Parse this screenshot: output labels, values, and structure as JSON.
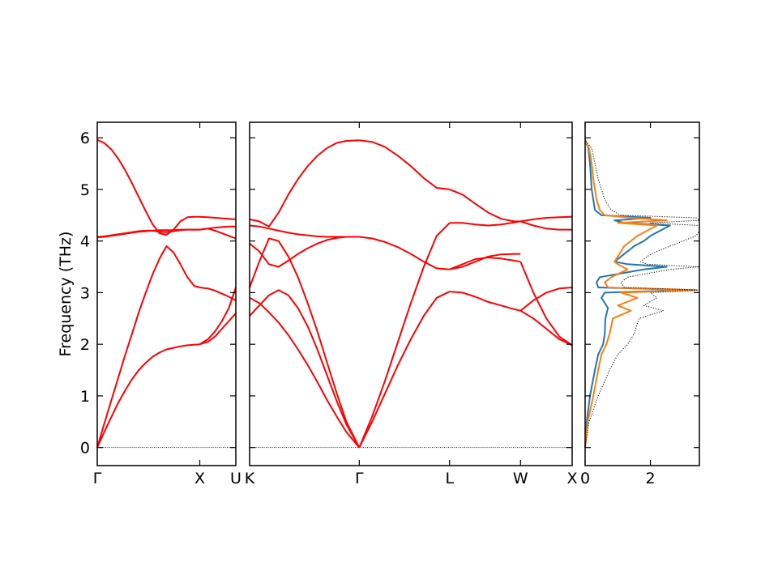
{
  "chart_data": [
    {
      "type": "line",
      "panel": "band-structure-left",
      "ylabel": "Frequency (THz)",
      "yticks": [
        0,
        1,
        2,
        3,
        4,
        5,
        6
      ],
      "ylim": [
        -0.35,
        6.3
      ],
      "xlim": [
        0,
        1
      ],
      "xticks": [
        {
          "value": 0,
          "label": "Γ"
        },
        {
          "value": 0.74,
          "label": "X"
        },
        {
          "value": 1.0,
          "label": "U"
        }
      ],
      "series_color": "#ff0000",
      "zero_line_color": "#00008b",
      "series": [
        {
          "x": [
            0,
            0.05,
            0.1,
            0.15,
            0.2,
            0.25,
            0.3,
            0.35,
            0.4,
            0.45,
            0.5,
            0.55,
            0.6,
            0.65,
            0.7,
            0.74
          ],
          "values": [
            0,
            0.3,
            0.58,
            0.86,
            1.1,
            1.32,
            1.5,
            1.64,
            1.76,
            1.84,
            1.9,
            1.93,
            1.96,
            1.98,
            1.99,
            2.0
          ]
        },
        {
          "x": [
            0,
            0.05,
            0.1,
            0.15,
            0.2,
            0.25,
            0.3,
            0.35,
            0.4,
            0.45,
            0.5,
            0.55,
            0.6,
            0.65,
            0.7,
            0.74
          ],
          "values": [
            0,
            0.46,
            0.9,
            1.34,
            1.78,
            2.2,
            2.62,
            3.0,
            3.36,
            3.66,
            3.9,
            3.78,
            3.55,
            3.3,
            3.13,
            3.1
          ]
        },
        {
          "x": [
            0,
            0.05,
            0.1,
            0.15,
            0.2,
            0.25,
            0.3,
            0.35,
            0.4,
            0.45,
            0.5,
            0.55,
            0.6,
            0.65,
            0.7,
            0.74
          ],
          "values": [
            4.07,
            4.08,
            4.1,
            4.12,
            4.14,
            4.16,
            4.18,
            4.19,
            4.2,
            4.21,
            4.21,
            4.21,
            4.22,
            4.22,
            4.22,
            4.22
          ]
        },
        {
          "x": [
            0,
            0.05,
            0.1,
            0.15,
            0.2,
            0.25,
            0.3,
            0.35,
            0.4,
            0.45,
            0.5,
            0.55,
            0.6,
            0.65,
            0.7,
            0.74
          ],
          "values": [
            5.96,
            5.9,
            5.78,
            5.6,
            5.38,
            5.12,
            4.85,
            4.58,
            4.32,
            4.15,
            4.12,
            4.22,
            4.38,
            4.46,
            4.47,
            4.47
          ]
        },
        {
          "x": [
            0,
            0.05,
            0.1,
            0.15,
            0.2,
            0.25,
            0.3,
            0.35,
            0.4,
            0.45,
            0.5,
            0.55,
            0.6,
            0.65,
            0.7,
            0.74
          ],
          "values": [
            4.08,
            4.09,
            4.11,
            4.13,
            4.15,
            4.17,
            4.19,
            4.2,
            4.2,
            4.18,
            4.17,
            4.19,
            4.21,
            4.22,
            4.22,
            4.22
          ]
        },
        {
          "x": [
            0.74,
            0.8,
            0.85,
            0.9,
            0.95,
            1.0
          ],
          "values": [
            2.0,
            2.1,
            2.25,
            2.45,
            2.7,
            3.1
          ]
        },
        {
          "x": [
            0.74,
            0.8,
            0.85,
            0.9,
            0.95,
            1.0
          ],
          "values": [
            2.0,
            2.05,
            2.15,
            2.3,
            2.45,
            2.6
          ]
        },
        {
          "x": [
            0.74,
            0.8,
            0.85,
            0.9,
            0.95,
            1.0
          ],
          "values": [
            3.1,
            3.08,
            3.04,
            2.98,
            2.92,
            2.85
          ]
        },
        {
          "x": [
            0.74,
            0.8,
            0.85,
            0.9,
            0.95,
            1.0
          ],
          "values": [
            4.22,
            4.24,
            4.2,
            4.15,
            4.1,
            4.05
          ]
        },
        {
          "x": [
            0.74,
            0.8,
            0.85,
            0.9,
            0.95,
            1.0
          ],
          "values": [
            4.47,
            4.46,
            4.45,
            4.44,
            4.43,
            4.42
          ]
        },
        {
          "x": [
            0.74,
            0.8,
            0.85,
            0.9,
            0.95,
            1.0
          ],
          "values": [
            4.22,
            4.24,
            4.26,
            4.27,
            4.28,
            4.28
          ]
        }
      ]
    },
    {
      "type": "line",
      "panel": "band-structure-right",
      "ylim": [
        -0.35,
        6.3
      ],
      "xlim": [
        0,
        1
      ],
      "xticks": [
        {
          "value": 0,
          "label": "K"
        },
        {
          "value": 0.34,
          "label": "Γ"
        },
        {
          "value": 0.62,
          "label": "L"
        },
        {
          "value": 0.84,
          "label": "W"
        },
        {
          "value": 1.0,
          "label": "X"
        }
      ],
      "series_color": "#ff0000",
      "zero_line_color": "#00008b",
      "series": [
        {
          "x": [
            0,
            0.03,
            0.06,
            0.09,
            0.12,
            0.15,
            0.18,
            0.21,
            0.24,
            0.27,
            0.3,
            0.34
          ],
          "values": [
            2.55,
            2.75,
            2.95,
            3.05,
            2.95,
            2.7,
            2.35,
            1.9,
            1.4,
            0.9,
            0.45,
            0
          ]
        },
        {
          "x": [
            0,
            0.03,
            0.06,
            0.09,
            0.12,
            0.15,
            0.18,
            0.21,
            0.24,
            0.27,
            0.3,
            0.34
          ],
          "values": [
            2.9,
            2.8,
            2.62,
            2.42,
            2.18,
            1.9,
            1.6,
            1.27,
            0.92,
            0.6,
            0.3,
            0
          ]
        },
        {
          "x": [
            0,
            0.03,
            0.06,
            0.09,
            0.12,
            0.15,
            0.18,
            0.21,
            0.24,
            0.27,
            0.3,
            0.34
          ],
          "values": [
            3.1,
            3.6,
            4.05,
            4.0,
            3.7,
            3.3,
            2.8,
            2.25,
            1.65,
            1.05,
            0.5,
            0
          ]
        },
        {
          "x": [
            0,
            0.03,
            0.06,
            0.09,
            0.12,
            0.15,
            0.18,
            0.21,
            0.24,
            0.27,
            0.3,
            0.34
          ],
          "values": [
            3.95,
            3.8,
            3.55,
            3.5,
            3.62,
            3.75,
            3.86,
            3.95,
            4.02,
            4.06,
            4.08,
            4.08
          ]
        },
        {
          "x": [
            0,
            0.03,
            0.06,
            0.09,
            0.12,
            0.15,
            0.18,
            0.21,
            0.24,
            0.27,
            0.3,
            0.34
          ],
          "values": [
            4.3,
            4.28,
            4.24,
            4.2,
            4.16,
            4.13,
            4.11,
            4.09,
            4.08,
            4.08,
            4.08,
            4.08
          ]
        },
        {
          "x": [
            0,
            0.03,
            0.06,
            0.09,
            0.12,
            0.15,
            0.18,
            0.21,
            0.24,
            0.27,
            0.3,
            0.34
          ],
          "values": [
            4.42,
            4.38,
            4.28,
            4.55,
            4.9,
            5.2,
            5.45,
            5.65,
            5.8,
            5.9,
            5.94,
            5.95
          ]
        },
        {
          "x": [
            0.34,
            0.38,
            0.42,
            0.46,
            0.5,
            0.54,
            0.58,
            0.62
          ],
          "values": [
            0,
            0.5,
            1.05,
            1.6,
            2.1,
            2.55,
            2.9,
            3.02
          ]
        },
        {
          "x": [
            0.34,
            0.38,
            0.42,
            0.46,
            0.5,
            0.54,
            0.58,
            0.62
          ],
          "values": [
            0,
            0.6,
            1.3,
            2.05,
            2.8,
            3.5,
            4.1,
            4.35
          ]
        },
        {
          "x": [
            0.34,
            0.38,
            0.42,
            0.46,
            0.5,
            0.54,
            0.58,
            0.62
          ],
          "values": [
            4.08,
            4.05,
            3.98,
            3.88,
            3.75,
            3.6,
            3.47,
            3.45
          ]
        },
        {
          "x": [
            0.34,
            0.38,
            0.42,
            0.46,
            0.5,
            0.54,
            0.58,
            0.62
          ],
          "values": [
            5.95,
            5.92,
            5.82,
            5.65,
            5.45,
            5.22,
            5.03,
            5.0
          ]
        },
        {
          "x": [
            0.62,
            0.66,
            0.7,
            0.74,
            0.78,
            0.82,
            0.84
          ],
          "values": [
            3.02,
            3.0,
            2.92,
            2.82,
            2.75,
            2.68,
            2.65
          ]
        },
        {
          "x": [
            0.62,
            0.66,
            0.7,
            0.74,
            0.78,
            0.82,
            0.84
          ],
          "values": [
            3.45,
            3.5,
            3.6,
            3.7,
            3.74,
            3.75,
            3.75
          ]
        },
        {
          "x": [
            0.62,
            0.66,
            0.7,
            0.74,
            0.78,
            0.82,
            0.84
          ],
          "values": [
            4.35,
            4.35,
            4.32,
            4.3,
            4.32,
            4.36,
            4.38
          ]
        },
        {
          "x": [
            0.62,
            0.66,
            0.7,
            0.74,
            0.78,
            0.82,
            0.84
          ],
          "values": [
            5.0,
            4.9,
            4.72,
            4.55,
            4.43,
            4.38,
            4.38
          ]
        },
        {
          "x": [
            0.62,
            0.66,
            0.7,
            0.74,
            0.78,
            0.82,
            0.84
          ],
          "values": [
            3.45,
            3.55,
            3.65,
            3.68,
            3.66,
            3.62,
            3.6
          ]
        },
        {
          "x": [
            0.84,
            0.88,
            0.92,
            0.96,
            1.0
          ],
          "values": [
            2.65,
            2.85,
            3.0,
            3.08,
            3.1
          ]
        },
        {
          "x": [
            0.84,
            0.88,
            0.92,
            0.96,
            1.0
          ],
          "values": [
            2.65,
            2.5,
            2.3,
            2.1,
            1.98
          ]
        },
        {
          "x": [
            0.84,
            0.88,
            0.92,
            0.96,
            1.0
          ],
          "values": [
            3.6,
            3.0,
            2.5,
            2.15,
            1.98
          ]
        },
        {
          "x": [
            0.84,
            0.88,
            0.92,
            0.96,
            1.0
          ],
          "values": [
            4.38,
            4.42,
            4.45,
            4.46,
            4.47
          ]
        },
        {
          "x": [
            0.84,
            0.88,
            0.92,
            0.96,
            1.0
          ],
          "values": [
            4.38,
            4.3,
            4.24,
            4.22,
            4.22
          ]
        }
      ]
    },
    {
      "type": "line",
      "panel": "density-of-states",
      "xlim": [
        0,
        3.5
      ],
      "xticks": [
        {
          "value": 0,
          "label": "0"
        },
        {
          "value": 2,
          "label": "2"
        }
      ],
      "ylim": [
        -0.35,
        6.3
      ],
      "series": [
        {
          "color": "#1f77b4",
          "style": "solid",
          "y": [
            0,
            0.5,
            1.0,
            1.5,
            1.8,
            2.0,
            2.2,
            2.5,
            2.7,
            2.9,
            3.0,
            3.05,
            3.1,
            3.2,
            3.3,
            3.45,
            3.5,
            3.55,
            3.6,
            3.7,
            3.8,
            3.9,
            4.0,
            4.1,
            4.2,
            4.3,
            4.35,
            4.4,
            4.45,
            4.5,
            4.6,
            4.8,
            5.0,
            5.2,
            5.5,
            5.8,
            5.95
          ],
          "values": [
            0,
            0.05,
            0.15,
            0.3,
            0.4,
            0.55,
            0.6,
            0.62,
            0.7,
            0.5,
            0.6,
            3.2,
            0.4,
            0.35,
            0.45,
            1.8,
            2.5,
            1.3,
            0.9,
            1.1,
            1.3,
            1.5,
            1.8,
            2.0,
            2.3,
            2.6,
            1.2,
            0.9,
            2.0,
            0.5,
            0.3,
            0.25,
            0.2,
            0.18,
            0.15,
            0.1,
            0
          ]
        },
        {
          "color": "#ff7f0e",
          "style": "solid",
          "y": [
            0,
            0.5,
            1.0,
            1.5,
            1.8,
            2.0,
            2.2,
            2.5,
            2.65,
            2.75,
            2.9,
            3.0,
            3.05,
            3.1,
            3.2,
            3.3,
            3.45,
            3.55,
            3.6,
            3.7,
            3.8,
            3.9,
            4.0,
            4.1,
            4.2,
            4.3,
            4.35,
            4.4,
            4.45,
            4.5,
            4.6,
            4.8,
            5.0,
            5.2,
            5.5,
            5.8,
            5.95
          ],
          "values": [
            0,
            0.08,
            0.25,
            0.4,
            0.5,
            0.65,
            0.75,
            0.85,
            1.4,
            1.0,
            1.6,
            1.1,
            3.4,
            0.7,
            0.6,
            0.8,
            1.3,
            1.0,
            0.9,
            1.0,
            1.1,
            1.2,
            1.4,
            1.6,
            1.9,
            2.2,
            1.0,
            2.5,
            1.4,
            0.6,
            0.45,
            0.35,
            0.3,
            0.25,
            0.2,
            0.12,
            0
          ]
        },
        {
          "color": "#000000",
          "style": "dotted",
          "y": [
            0,
            0.5,
            1.0,
            1.5,
            1.8,
            2.0,
            2.2,
            2.5,
            2.65,
            2.75,
            2.9,
            3.0,
            3.05,
            3.1,
            3.2,
            3.3,
            3.45,
            3.5,
            3.55,
            3.6,
            3.7,
            3.8,
            3.9,
            4.0,
            4.1,
            4.2,
            4.3,
            4.35,
            4.4,
            4.45,
            4.5,
            4.6,
            4.8,
            5.0,
            5.2,
            5.5,
            5.8,
            5.95
          ],
          "values": [
            0,
            0.12,
            0.4,
            0.75,
            1.0,
            1.3,
            1.5,
            1.65,
            2.4,
            1.8,
            2.2,
            2.0,
            3.5,
            1.2,
            1.1,
            1.3,
            2.6,
            3.5,
            1.9,
            1.7,
            1.9,
            2.2,
            2.6,
            3.0,
            3.4,
            3.5,
            3.5,
            2.0,
            3.5,
            3.4,
            1.1,
            0.8,
            0.6,
            0.5,
            0.4,
            0.3,
            0.2,
            0
          ]
        }
      ]
    }
  ]
}
